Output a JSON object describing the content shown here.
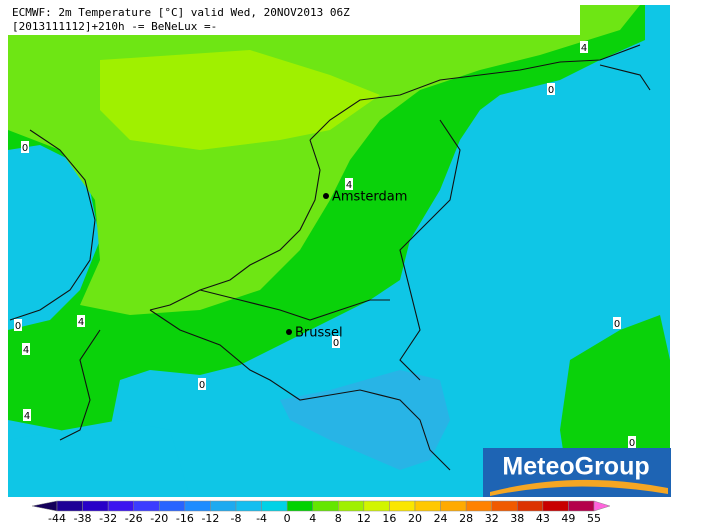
{
  "header": {
    "line1": "ECMWF: 2m Temperature [°C] valid Wed, 20NOV2013 06Z",
    "line2": "[2013111112]+210h -= BeNeLux =-"
  },
  "cities": [
    {
      "label": "Amsterdam"
    },
    {
      "label": "Brussel"
    }
  ],
  "contour_labels": [
    "4",
    "0",
    "0",
    "4",
    "0",
    "4",
    "4",
    "0",
    "0",
    "0",
    "4",
    "0"
  ],
  "legend": {
    "labels": [
      "-44",
      "-38",
      "-32",
      "-26",
      "-20",
      "-16",
      "-12",
      "-8",
      "-4",
      "0",
      "4",
      "8",
      "12",
      "16",
      "20",
      "24",
      "28",
      "32",
      "38",
      "43",
      "49",
      "55"
    ],
    "colors": [
      "#14005a",
      "#1e0096",
      "#2800c8",
      "#3c14f0",
      "#3c3cff",
      "#2864ff",
      "#1e8cff",
      "#1eaaf0",
      "#14bef0",
      "#00d2e6",
      "#00d200",
      "#64e600",
      "#a0f000",
      "#d2f500",
      "#fae600",
      "#ffc800",
      "#ffaa00",
      "#ff8200",
      "#f05a00",
      "#dc3200",
      "#c80000",
      "#b4004b",
      "#ff64dc"
    ]
  },
  "logo": {
    "text": "MeteoGroup"
  }
}
